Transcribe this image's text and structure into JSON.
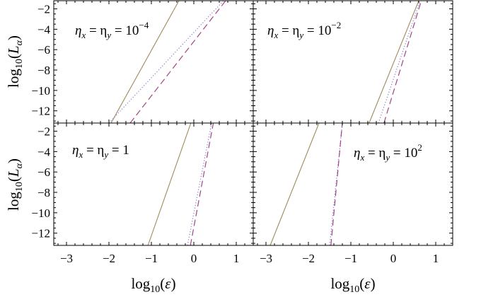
{
  "chart_data": [
    {
      "type": "line",
      "panel": "top-left",
      "annotation": {
        "lhs": "η",
        "sub1": "x",
        "mid": " = η",
        "sub2": "y",
        "rhs": " = 10",
        "sup": "−4"
      },
      "xlim": [
        -3.3,
        1.4
      ],
      "ylim": [
        -13.2,
        -1.2
      ],
      "series": [
        {
          "style": "solid",
          "color": "#a08a5a",
          "x": [
            -1.95,
            -0.35
          ],
          "y": [
            -13.2,
            -1.2
          ]
        },
        {
          "style": "dotted",
          "color": "#8877cc",
          "x": [
            -2.0,
            0.7
          ],
          "y": [
            -13.2,
            -1.2
          ]
        },
        {
          "style": "dashed",
          "color": "#a04488",
          "x": [
            -1.5,
            0.75
          ],
          "y": [
            -13.2,
            -1.2
          ]
        }
      ]
    },
    {
      "type": "line",
      "panel": "top-right",
      "annotation": {
        "lhs": "η",
        "sub1": "x",
        "mid": " = η",
        "sub2": "y",
        "rhs": " = 10",
        "sup": "−2"
      },
      "xlim": [
        -3.3,
        1.4
      ],
      "ylim": [
        -13.2,
        -1.2
      ],
      "series": [
        {
          "style": "solid",
          "color": "#a08a5a",
          "x": [
            -0.57,
            0.6
          ],
          "y": [
            -13.2,
            -1.2
          ]
        },
        {
          "style": "dotted",
          "color": "#8877cc",
          "x": [
            -0.35,
            0.63
          ],
          "y": [
            -13.2,
            -1.2
          ]
        },
        {
          "style": "dashed",
          "color": "#a04488",
          "x": [
            -0.22,
            0.66
          ],
          "y": [
            -13.2,
            -1.2
          ]
        }
      ]
    },
    {
      "type": "line",
      "panel": "bottom-left",
      "annotation": {
        "lhs": "η",
        "sub1": "x",
        "mid": " = η",
        "sub2": "y",
        "rhs": " = 1",
        "sup": ""
      },
      "xlim": [
        -3.3,
        1.4
      ],
      "ylim": [
        -13.2,
        -1.2
      ],
      "series": [
        {
          "style": "solid",
          "color": "#a08a5a",
          "x": [
            -1.08,
            -0.07
          ],
          "y": [
            -13.2,
            -1.2
          ]
        },
        {
          "style": "dotted",
          "color": "#8877cc",
          "x": [
            -0.15,
            0.42
          ],
          "y": [
            -13.2,
            -1.2
          ]
        },
        {
          "style": "dashed",
          "color": "#a04488",
          "x": [
            -0.08,
            0.46
          ],
          "y": [
            -13.2,
            -1.2
          ]
        }
      ]
    },
    {
      "type": "line",
      "panel": "bottom-right",
      "annotation": {
        "lhs": "η",
        "sub1": "x",
        "mid": " = η",
        "sub2": "y",
        "rhs": " = 10",
        "sup": "2"
      },
      "xlim": [
        -3.3,
        1.4
      ],
      "ylim": [
        -13.2,
        -1.2
      ],
      "series": [
        {
          "style": "solid",
          "color": "#a08a5a",
          "x": [
            -2.9,
            -1.75
          ],
          "y": [
            -13.2,
            -1.2
          ]
        },
        {
          "style": "dotted",
          "color": "#8877cc",
          "x": [
            -1.5,
            -1.2
          ],
          "y": [
            -13.2,
            -1.2
          ]
        },
        {
          "style": "dashed",
          "color": "#a04488",
          "x": [
            -1.47,
            -1.2
          ],
          "y": [
            -13.2,
            -1.2
          ]
        }
      ]
    }
  ],
  "axes": {
    "ylabel": {
      "pre": "log",
      "sub": "10",
      "open": "(",
      "var": "L",
      "varsub": "α",
      "close": ")"
    },
    "xlabel": {
      "pre": "log",
      "sub": "10",
      "open": "(",
      "var": "ε",
      "close": ")"
    },
    "xticks": [
      -3,
      -2,
      -1,
      0,
      1
    ],
    "xtick_labels": [
      "−3",
      "−2",
      "−1",
      "0",
      "1"
    ],
    "yticks": [
      -12,
      -10,
      -8,
      -6,
      -4,
      -2
    ],
    "ytick_labels": [
      "−12",
      "−10",
      "−8",
      "−6",
      "−4",
      "−2"
    ]
  }
}
